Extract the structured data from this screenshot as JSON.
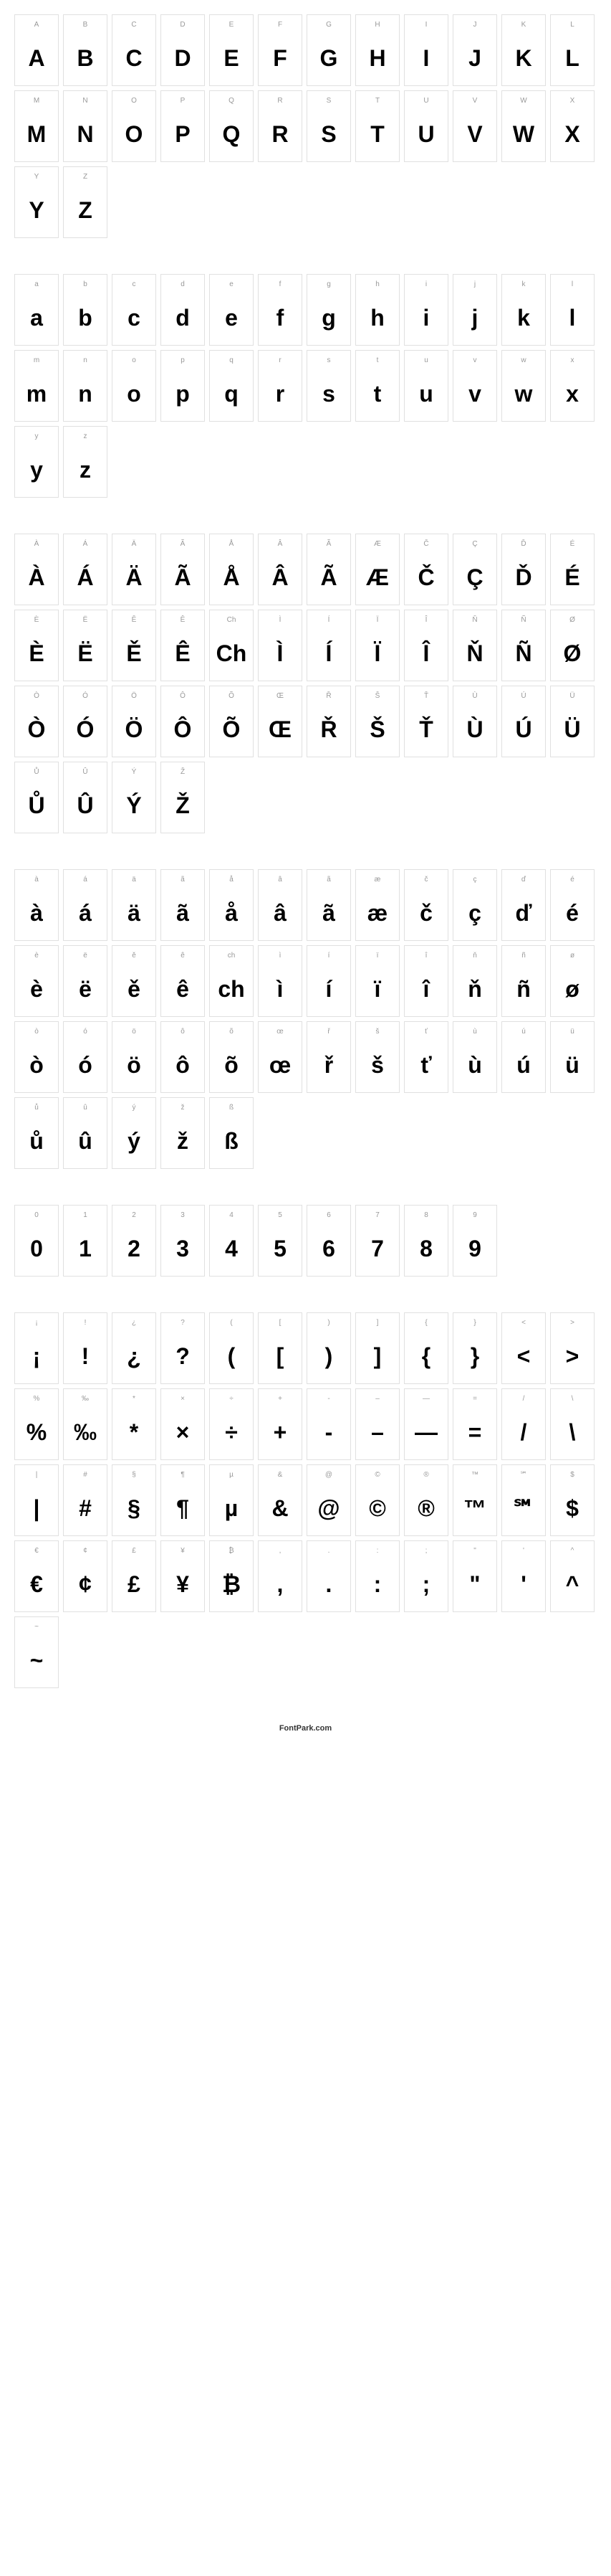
{
  "footer": "FontPark.com",
  "sections": [
    {
      "name": "uppercase",
      "glyphs": [
        {
          "label": "A",
          "char": "A"
        },
        {
          "label": "B",
          "char": "B"
        },
        {
          "label": "C",
          "char": "C"
        },
        {
          "label": "D",
          "char": "D"
        },
        {
          "label": "E",
          "char": "E"
        },
        {
          "label": "F",
          "char": "F"
        },
        {
          "label": "G",
          "char": "G"
        },
        {
          "label": "H",
          "char": "H"
        },
        {
          "label": "I",
          "char": "I"
        },
        {
          "label": "J",
          "char": "J"
        },
        {
          "label": "K",
          "char": "K"
        },
        {
          "label": "L",
          "char": "L"
        },
        {
          "label": "M",
          "char": "M"
        },
        {
          "label": "N",
          "char": "N"
        },
        {
          "label": "O",
          "char": "O"
        },
        {
          "label": "P",
          "char": "P"
        },
        {
          "label": "Q",
          "char": "Q"
        },
        {
          "label": "R",
          "char": "R"
        },
        {
          "label": "S",
          "char": "S"
        },
        {
          "label": "T",
          "char": "T"
        },
        {
          "label": "U",
          "char": "U"
        },
        {
          "label": "V",
          "char": "V"
        },
        {
          "label": "W",
          "char": "W"
        },
        {
          "label": "X",
          "char": "X"
        },
        {
          "label": "Y",
          "char": "Y"
        },
        {
          "label": "Z",
          "char": "Z"
        }
      ]
    },
    {
      "name": "lowercase",
      "glyphs": [
        {
          "label": "a",
          "char": "a"
        },
        {
          "label": "b",
          "char": "b"
        },
        {
          "label": "c",
          "char": "c"
        },
        {
          "label": "d",
          "char": "d"
        },
        {
          "label": "e",
          "char": "e"
        },
        {
          "label": "f",
          "char": "f"
        },
        {
          "label": "g",
          "char": "g"
        },
        {
          "label": "h",
          "char": "h"
        },
        {
          "label": "i",
          "char": "i"
        },
        {
          "label": "j",
          "char": "j"
        },
        {
          "label": "k",
          "char": "k"
        },
        {
          "label": "l",
          "char": "l"
        },
        {
          "label": "m",
          "char": "m"
        },
        {
          "label": "n",
          "char": "n"
        },
        {
          "label": "o",
          "char": "o"
        },
        {
          "label": "p",
          "char": "p"
        },
        {
          "label": "q",
          "char": "q"
        },
        {
          "label": "r",
          "char": "r"
        },
        {
          "label": "s",
          "char": "s"
        },
        {
          "label": "t",
          "char": "t"
        },
        {
          "label": "u",
          "char": "u"
        },
        {
          "label": "v",
          "char": "v"
        },
        {
          "label": "w",
          "char": "w"
        },
        {
          "label": "x",
          "char": "x"
        },
        {
          "label": "y",
          "char": "y"
        },
        {
          "label": "z",
          "char": "z"
        }
      ]
    },
    {
      "name": "accented-uppercase",
      "glyphs": [
        {
          "label": "À",
          "char": "À"
        },
        {
          "label": "Á",
          "char": "Á"
        },
        {
          "label": "Ä",
          "char": "Ä"
        },
        {
          "label": "Ã",
          "char": "Ã"
        },
        {
          "label": "Å",
          "char": "Å"
        },
        {
          "label": "Â",
          "char": "Â"
        },
        {
          "label": "Ã",
          "char": "Ã"
        },
        {
          "label": "Æ",
          "char": "Æ"
        },
        {
          "label": "Č",
          "char": "Č"
        },
        {
          "label": "Ç",
          "char": "Ç"
        },
        {
          "label": "Ď",
          "char": "Ď"
        },
        {
          "label": "É",
          "char": "É"
        },
        {
          "label": "È",
          "char": "È"
        },
        {
          "label": "Ë",
          "char": "Ë"
        },
        {
          "label": "Ě",
          "char": "Ě"
        },
        {
          "label": "Ê",
          "char": "Ê"
        },
        {
          "label": "Ch",
          "char": "Ch"
        },
        {
          "label": "Ì",
          "char": "Ì"
        },
        {
          "label": "Í",
          "char": "Í"
        },
        {
          "label": "Ï",
          "char": "Ï"
        },
        {
          "label": "Î",
          "char": "Î"
        },
        {
          "label": "Ň",
          "char": "Ň"
        },
        {
          "label": "Ñ",
          "char": "Ñ"
        },
        {
          "label": "Ø",
          "char": "Ø"
        },
        {
          "label": "Ò",
          "char": "Ò"
        },
        {
          "label": "Ó",
          "char": "Ó"
        },
        {
          "label": "Ö",
          "char": "Ö"
        },
        {
          "label": "Ô",
          "char": "Ô"
        },
        {
          "label": "Õ",
          "char": "Õ"
        },
        {
          "label": "Œ",
          "char": "Œ"
        },
        {
          "label": "Ř",
          "char": "Ř"
        },
        {
          "label": "Š",
          "char": "Š"
        },
        {
          "label": "Ť",
          "char": "Ť"
        },
        {
          "label": "Ù",
          "char": "Ù"
        },
        {
          "label": "Ú",
          "char": "Ú"
        },
        {
          "label": "Ü",
          "char": "Ü"
        },
        {
          "label": "Ů",
          "char": "Ů"
        },
        {
          "label": "Û",
          "char": "Û"
        },
        {
          "label": "Ý",
          "char": "Ý"
        },
        {
          "label": "Ž",
          "char": "Ž"
        }
      ]
    },
    {
      "name": "accented-lowercase",
      "glyphs": [
        {
          "label": "à",
          "char": "à"
        },
        {
          "label": "á",
          "char": "á"
        },
        {
          "label": "ä",
          "char": "ä"
        },
        {
          "label": "ã",
          "char": "ã"
        },
        {
          "label": "å",
          "char": "å"
        },
        {
          "label": "â",
          "char": "â"
        },
        {
          "label": "ã",
          "char": "ã"
        },
        {
          "label": "æ",
          "char": "æ"
        },
        {
          "label": "č",
          "char": "č"
        },
        {
          "label": "ç",
          "char": "ç"
        },
        {
          "label": "ď",
          "char": "ď"
        },
        {
          "label": "é",
          "char": "é"
        },
        {
          "label": "è",
          "char": "è"
        },
        {
          "label": "ë",
          "char": "ë"
        },
        {
          "label": "ě",
          "char": "ě"
        },
        {
          "label": "ê",
          "char": "ê"
        },
        {
          "label": "ch",
          "char": "ch"
        },
        {
          "label": "ì",
          "char": "ì"
        },
        {
          "label": "í",
          "char": "í"
        },
        {
          "label": "ï",
          "char": "ï"
        },
        {
          "label": "î",
          "char": "î"
        },
        {
          "label": "ň",
          "char": "ň"
        },
        {
          "label": "ñ",
          "char": "ñ"
        },
        {
          "label": "ø",
          "char": "ø"
        },
        {
          "label": "ò",
          "char": "ò"
        },
        {
          "label": "ó",
          "char": "ó"
        },
        {
          "label": "ö",
          "char": "ö"
        },
        {
          "label": "ô",
          "char": "ô"
        },
        {
          "label": "õ",
          "char": "õ"
        },
        {
          "label": "œ",
          "char": "œ"
        },
        {
          "label": "ř",
          "char": "ř"
        },
        {
          "label": "š",
          "char": "š"
        },
        {
          "label": "ť",
          "char": "ť"
        },
        {
          "label": "ù",
          "char": "ù"
        },
        {
          "label": "ú",
          "char": "ú"
        },
        {
          "label": "ü",
          "char": "ü"
        },
        {
          "label": "ů",
          "char": "ů"
        },
        {
          "label": "û",
          "char": "û"
        },
        {
          "label": "ý",
          "char": "ý"
        },
        {
          "label": "ž",
          "char": "ž"
        },
        {
          "label": "ß",
          "char": "ß"
        }
      ]
    },
    {
      "name": "digits",
      "glyphs": [
        {
          "label": "0",
          "char": "0"
        },
        {
          "label": "1",
          "char": "1"
        },
        {
          "label": "2",
          "char": "2"
        },
        {
          "label": "3",
          "char": "3"
        },
        {
          "label": "4",
          "char": "4"
        },
        {
          "label": "5",
          "char": "5"
        },
        {
          "label": "6",
          "char": "6"
        },
        {
          "label": "7",
          "char": "7"
        },
        {
          "label": "8",
          "char": "8"
        },
        {
          "label": "9",
          "char": "9"
        }
      ]
    },
    {
      "name": "symbols",
      "glyphs": [
        {
          "label": "¡",
          "char": "¡"
        },
        {
          "label": "!",
          "char": "!"
        },
        {
          "label": "¿",
          "char": "¿"
        },
        {
          "label": "?",
          "char": "?"
        },
        {
          "label": "(",
          "char": "("
        },
        {
          "label": "[",
          "char": "["
        },
        {
          "label": ")",
          "char": ")"
        },
        {
          "label": "]",
          "char": "]"
        },
        {
          "label": "{",
          "char": "{"
        },
        {
          "label": "}",
          "char": "}"
        },
        {
          "label": "<",
          "char": "<"
        },
        {
          "label": ">",
          "char": ">"
        },
        {
          "label": "%",
          "char": "%"
        },
        {
          "label": "‰",
          "char": "‰"
        },
        {
          "label": "*",
          "char": "*"
        },
        {
          "label": "×",
          "char": "×"
        },
        {
          "label": "÷",
          "char": "÷"
        },
        {
          "label": "+",
          "char": "+"
        },
        {
          "label": "-",
          "char": "-"
        },
        {
          "label": "–",
          "char": "–"
        },
        {
          "label": "—",
          "char": "—"
        },
        {
          "label": "=",
          "char": "="
        },
        {
          "label": "/",
          "char": "/"
        },
        {
          "label": "\\",
          "char": "\\"
        },
        {
          "label": "|",
          "char": "|"
        },
        {
          "label": "#",
          "char": "#"
        },
        {
          "label": "§",
          "char": "§"
        },
        {
          "label": "¶",
          "char": "¶"
        },
        {
          "label": "µ",
          "char": "µ"
        },
        {
          "label": "&",
          "char": "&"
        },
        {
          "label": "@",
          "char": "@"
        },
        {
          "label": "©",
          "char": "©"
        },
        {
          "label": "®",
          "char": "®"
        },
        {
          "label": "™",
          "char": "™"
        },
        {
          "label": "℠",
          "char": "℠"
        },
        {
          "label": "$",
          "char": "$"
        },
        {
          "label": "€",
          "char": "€"
        },
        {
          "label": "¢",
          "char": "¢"
        },
        {
          "label": "£",
          "char": "£"
        },
        {
          "label": "¥",
          "char": "¥"
        },
        {
          "label": "₿",
          "char": "₿"
        },
        {
          "label": ",",
          "char": ","
        },
        {
          "label": ".",
          "char": "."
        },
        {
          "label": ":",
          "char": ":"
        },
        {
          "label": ";",
          "char": ";"
        },
        {
          "label": "\"",
          "char": "\""
        },
        {
          "label": "'",
          "char": "'"
        },
        {
          "label": "^",
          "char": "^"
        },
        {
          "label": "~",
          "char": "~"
        }
      ]
    }
  ]
}
